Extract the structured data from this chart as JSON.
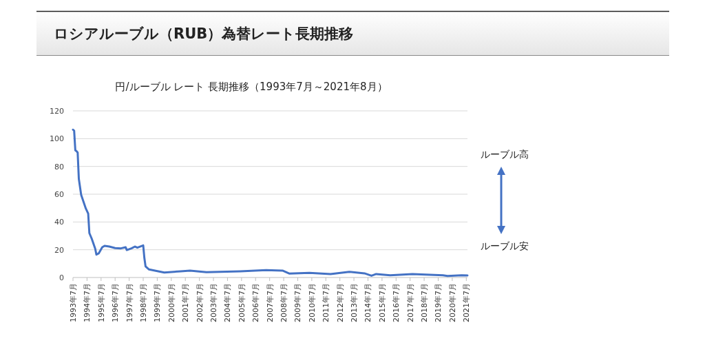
{
  "chart_data": {
    "type": "line",
    "title": "ロシアルーブル（RUB）為替レート長期推移",
    "subtitle": "円/ルーブル レート 長期推移（1993年7月～2021年8月）",
    "annotations": [
      "ルーブル高",
      "ルーブル安"
    ],
    "color": "#4472c4",
    "x": [
      "1993-07",
      "1993-08",
      "1993-09",
      "1993-10",
      "1993-11",
      "1993-12",
      "1994-02",
      "1994-04",
      "1994-06",
      "1994-08",
      "1994-09",
      "1994-11",
      "1995-02",
      "1995-03",
      "1995-05",
      "1995-08",
      "1995-10",
      "1996-02",
      "1996-07",
      "1996-12",
      "1997-04",
      "1997-05",
      "1997-09",
      "1997-12",
      "1998-02",
      "1998-07",
      "1998-08",
      "1998-09",
      "1998-12",
      "1999-05",
      "2000-01",
      "2001-03",
      "2001-11",
      "2003-01",
      "2005-06",
      "2007-04",
      "2008-06",
      "2008-12",
      "2010-05",
      "2011-11",
      "2013-03",
      "2014-04",
      "2014-10",
      "2015-02",
      "2016-02",
      "2017-09",
      "2019-11",
      "2020-03",
      "2021-03",
      "2021-08"
    ],
    "values": [
      106.5,
      105.7,
      91.6,
      91,
      90,
      71,
      59.5,
      54.5,
      49.6,
      46,
      32,
      28,
      20.7,
      16.5,
      17.4,
      21.8,
      22.8,
      22.3,
      21.2,
      21,
      21.8,
      19.8,
      21,
      22.3,
      21.5,
      23.1,
      14,
      8,
      5.8,
      5,
      3.6,
      4.5,
      5,
      3.8,
      4.5,
      5.3,
      5,
      2.8,
      3.3,
      2.5,
      4.1,
      3,
      1.3,
      2.5,
      1.6,
      2.5,
      1.6,
      1.1,
      1.6,
      1.5
    ],
    "xlim": [
      "1993-07",
      "2021-08"
    ],
    "xticks": [
      {
        "value": "1993-07",
        "label": "1993年7月"
      },
      {
        "value": "1994-07",
        "label": "1994年7月"
      },
      {
        "value": "1995-07",
        "label": "1995年7月"
      },
      {
        "value": "1996-07",
        "label": "1996年7月"
      },
      {
        "value": "1997-07",
        "label": "1997年7月"
      },
      {
        "value": "1998-07",
        "label": "1998年7月"
      },
      {
        "value": "1999-07",
        "label": "1999年7月"
      },
      {
        "value": "2000-07",
        "label": "2000年7月"
      },
      {
        "value": "2001-07",
        "label": "2001年7月"
      },
      {
        "value": "2002-07",
        "label": "2002年7月"
      },
      {
        "value": "2003-07",
        "label": "2003年7月"
      },
      {
        "value": "2004-07",
        "label": "2004年7月"
      },
      {
        "value": "2005-07",
        "label": "2005年7月"
      },
      {
        "value": "2006-07",
        "label": "2006年7月"
      },
      {
        "value": "2007-07",
        "label": "2007年7月"
      },
      {
        "value": "2008-07",
        "label": "2008年7月"
      },
      {
        "value": "2009-07",
        "label": "2009年7月"
      },
      {
        "value": "2010-07",
        "label": "2010年7月"
      },
      {
        "value": "2011-07",
        "label": "2011年7月"
      },
      {
        "value": "2012-07",
        "label": "2012年7月"
      },
      {
        "value": "2013-07",
        "label": "2013年7月"
      },
      {
        "value": "2014-07",
        "label": "2014年7月"
      },
      {
        "value": "2015-07",
        "label": "2015年7月"
      },
      {
        "value": "2016-07",
        "label": "2016年7月"
      },
      {
        "value": "2017-07",
        "label": "2017年7月"
      },
      {
        "value": "2018-07",
        "label": "2018年7月"
      },
      {
        "value": "2019-07",
        "label": "2019年7月"
      },
      {
        "value": "2020-07",
        "label": "2020年7月"
      },
      {
        "value": "2021-07",
        "label": "2021年7月"
      }
    ],
    "ylim": [
      0,
      120
    ],
    "yticks": [
      0,
      20,
      40,
      60,
      80,
      100,
      120
    ],
    "grid": "y"
  }
}
